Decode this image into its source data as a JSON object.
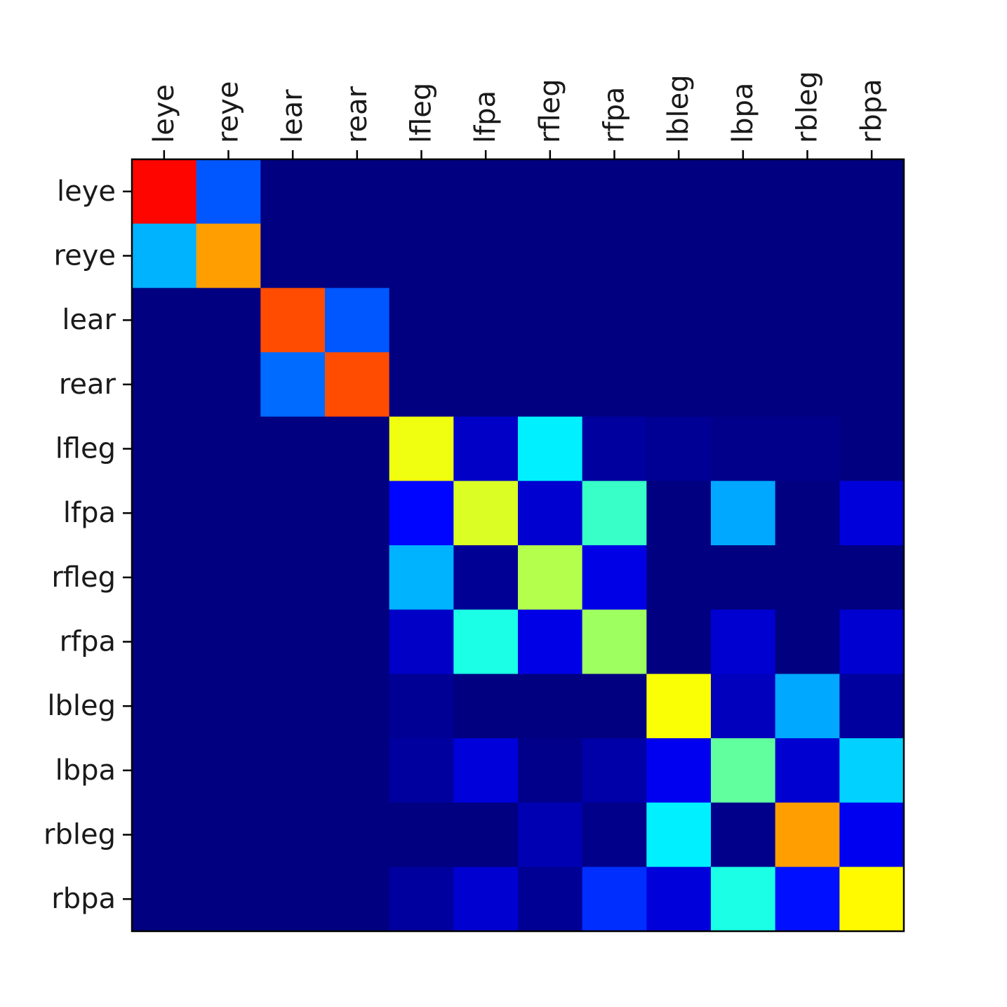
{
  "chart_data": {
    "type": "heatmap",
    "title": "",
    "xlabel": "",
    "ylabel": "",
    "colormap": "jet",
    "vmin": 0,
    "vmax": 1,
    "x_labels": [
      "leye",
      "reye",
      "lear",
      "rear",
      "lfleg",
      "lfpa",
      "rfleg",
      "rfpa",
      "lbleg",
      "lbpa",
      "rbleg",
      "rbpa"
    ],
    "y_labels": [
      "leye",
      "reye",
      "lear",
      "rear",
      "lfleg",
      "lfpa",
      "rfleg",
      "rfpa",
      "lbleg",
      "lbpa",
      "rbleg",
      "rbpa"
    ],
    "x_tick_position": "top",
    "x_tick_rotation": 90,
    "grid": false,
    "values": [
      [
        0.87,
        0.21,
        0,
        0,
        0,
        0,
        0,
        0,
        0,
        0,
        0,
        0
      ],
      [
        0.3,
        0.72,
        0,
        0,
        0,
        0,
        0,
        0,
        0,
        0,
        0,
        0
      ],
      [
        0,
        0,
        0.8,
        0.21,
        0,
        0,
        0,
        0,
        0,
        0,
        0,
        0
      ],
      [
        0,
        0,
        0.23,
        0.8,
        0,
        0,
        0,
        0,
        0,
        0,
        0,
        0
      ],
      [
        0,
        0,
        0,
        0,
        0.61,
        0.07,
        0.36,
        0.03,
        0.02,
        0.01,
        0.01,
        0
      ],
      [
        0,
        0,
        0,
        0,
        0.13,
        0.59,
        0.08,
        0.43,
        0,
        0.29,
        0,
        0.09
      ],
      [
        0,
        0,
        0,
        0,
        0.3,
        0.02,
        0.55,
        0.1,
        0,
        0,
        0,
        0
      ],
      [
        0,
        0,
        0,
        0,
        0.07,
        0.4,
        0.1,
        0.53,
        0,
        0.08,
        0,
        0.08
      ],
      [
        0,
        0,
        0,
        0,
        0.02,
        0,
        0,
        0,
        0.62,
        0.06,
        0.29,
        0.03
      ],
      [
        0,
        0,
        0,
        0,
        0.03,
        0.09,
        0.01,
        0.04,
        0.11,
        0.47,
        0.08,
        0.33
      ],
      [
        0,
        0,
        0,
        0,
        0,
        0,
        0.05,
        0.01,
        0.36,
        0.01,
        0.72,
        0.11
      ],
      [
        0,
        0,
        0,
        0,
        0.03,
        0.08,
        0.02,
        0.17,
        0.09,
        0.4,
        0.14,
        0.63
      ]
    ]
  }
}
